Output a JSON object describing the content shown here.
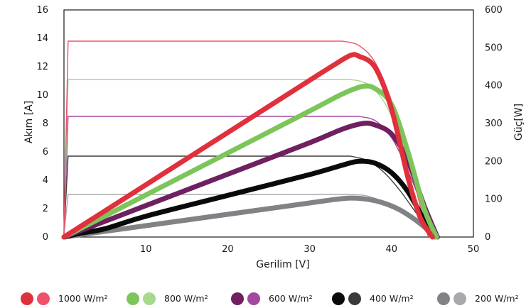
{
  "chart_data": {
    "type": "line",
    "title": "",
    "xlabel": "Gerilim [V]",
    "ylabel": "Akım [A]",
    "y2label": "Güç[W]",
    "xlim": [
      0,
      50
    ],
    "ylim": [
      0,
      16
    ],
    "y2lim": [
      0,
      600
    ],
    "xticks": [
      10,
      20,
      30,
      40,
      50
    ],
    "yticks": [
      0,
      2,
      4,
      6,
      8,
      10,
      12,
      14,
      16
    ],
    "y2ticks": [
      0,
      100,
      200,
      300,
      400,
      500,
      600
    ],
    "grid": false,
    "legend_position": "bottom",
    "series": [
      {
        "name": "1000 W/m²",
        "colors": [
          "#e0303c",
          "#f0506a"
        ],
        "current_curve": {
          "x": [
            0,
            0.5,
            34,
            36,
            38,
            40,
            42,
            43.5,
            44.5
          ],
          "y": [
            0.2,
            13.8,
            13.8,
            13.5,
            12.3,
            9.6,
            5.6,
            2.2,
            0
          ]
        },
        "power_curve": {
          "x": [
            0,
            10,
            20,
            30,
            33,
            35,
            36,
            38,
            40,
            42,
            43.5,
            45
          ],
          "y": [
            0,
            138,
            276,
            414,
            455,
            480,
            478,
            448,
            338,
            158,
            52,
            0
          ]
        }
      },
      {
        "name": "800 W/m²",
        "colors": [
          "#7dc55a",
          "#a8d98b"
        ],
        "current_curve": {
          "x": [
            0,
            0.5,
            35,
            37,
            39,
            41,
            43,
            44.5,
            45.3
          ],
          "y": [
            0.2,
            11.1,
            11.1,
            10.8,
            9.6,
            7.2,
            3.8,
            1.2,
            0
          ]
        },
        "power_curve": {
          "x": [
            0,
            10,
            20,
            30,
            34,
            36.5,
            38,
            40,
            42,
            44,
            45.5
          ],
          "y": [
            0,
            111,
            222,
            333,
            378,
            398,
            392,
            350,
            226,
            74,
            0
          ]
        }
      },
      {
        "name": "600 W/m²",
        "colors": [
          "#6e2060",
          "#a348a0"
        ],
        "current_curve": {
          "x": [
            0,
            0.5,
            36,
            38,
            40,
            42,
            44,
            45.3
          ],
          "y": [
            0.2,
            8.5,
            8.5,
            8.2,
            7.0,
            4.7,
            1.8,
            0
          ]
        },
        "power_curve": {
          "x": [
            0,
            10,
            20,
            30,
            34,
            36.5,
            38,
            40,
            42,
            44,
            45.6
          ],
          "y": [
            0,
            83,
            166,
            249,
            285,
            300,
            296,
            272,
            202,
            82,
            0
          ]
        }
      },
      {
        "name": "400 W/m²",
        "colors": [
          "#0a0a0a",
          "#3a3a3a"
        ],
        "current_curve": {
          "x": [
            0,
            0.5,
            35,
            37,
            39,
            41,
            43,
            44.5,
            45.3
          ],
          "y": [
            0.2,
            5.7,
            5.7,
            5.4,
            4.6,
            3.3,
            1.7,
            0.5,
            0
          ]
        },
        "power_curve": {
          "x": [
            0,
            2,
            5,
            10,
            20,
            30,
            34,
            36,
            38,
            40,
            42,
            44,
            45.6
          ],
          "y": [
            0,
            10,
            22,
            55,
            110,
            165,
            190,
            200,
            195,
            170,
            120,
            45,
            0
          ]
        }
      },
      {
        "name": "200 W/m²",
        "colors": [
          "#808285",
          "#a7a9ac"
        ],
        "current_curve": {
          "x": [
            0,
            0.5,
            35,
            37,
            39,
            41,
            43,
            44.5,
            45.3
          ],
          "y": [
            0.2,
            3.0,
            3.0,
            2.9,
            2.5,
            1.9,
            1.0,
            0.3,
            0
          ]
        },
        "power_curve": {
          "x": [
            0,
            10,
            20,
            30,
            33,
            35,
            37,
            39,
            41,
            43,
            44.5,
            45.3
          ],
          "y": [
            0,
            30,
            60,
            90,
            99,
            103,
            100,
            90,
            72,
            44,
            18,
            0
          ]
        }
      }
    ]
  }
}
